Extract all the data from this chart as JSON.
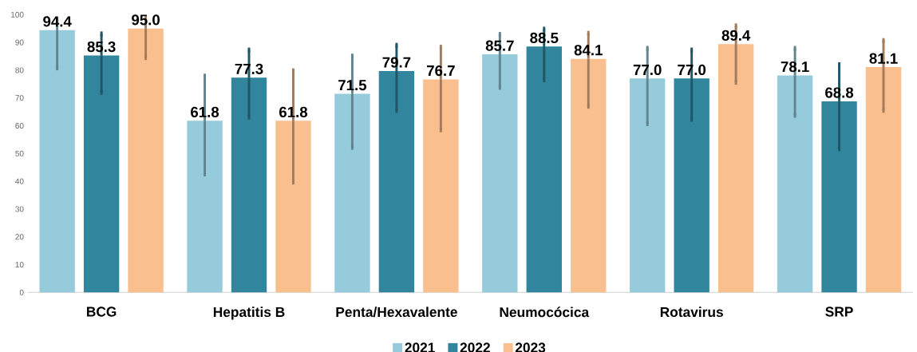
{
  "chart_data": {
    "type": "bar",
    "categories": [
      "BCG",
      "Hepatitis B",
      "Penta/Hexavalente",
      "Neumocócica",
      "Rotavirus",
      "SRP"
    ],
    "series": [
      {
        "name": "2021",
        "color": "#96cbdc",
        "values": [
          94.4,
          61.8,
          71.5,
          85.7,
          77.0,
          78.1
        ],
        "errors": [
          [
            80.8,
            98.4
          ],
          [
            42.6,
            77.9
          ],
          [
            52.2,
            85.1
          ],
          [
            73.8,
            92.9
          ],
          [
            60.7,
            87.9
          ],
          [
            63.7,
            87.9
          ]
        ],
        "value_labels": [
          "94.4",
          "61.8",
          "71.5",
          "85.7",
          "77.0",
          "78.1"
        ]
      },
      {
        "name": "2022",
        "color": "#31859c",
        "values": [
          85.3,
          77.3,
          79.7,
          88.5,
          77.0,
          68.8
        ],
        "errors": [
          [
            72.0,
            93.1
          ],
          [
            63.1,
            87.3
          ],
          [
            65.5,
            89.0
          ],
          [
            76.5,
            94.8
          ],
          [
            62.3,
            87.3
          ],
          [
            51.7,
            82.0
          ]
        ],
        "value_labels": [
          "85.3",
          "77.3",
          "79.7",
          "88.5",
          "77.0",
          "68.8"
        ]
      },
      {
        "name": "2023",
        "color": "#f9bf8f",
        "values": [
          95.0,
          61.8,
          76.7,
          84.1,
          89.4,
          81.1
        ],
        "errors": [
          [
            84.5,
            98.7
          ],
          [
            39.7,
            79.8
          ],
          [
            58.5,
            88.3
          ],
          [
            67.0,
            93.3
          ],
          [
            75.6,
            96.0
          ],
          [
            65.5,
            90.7
          ]
        ],
        "value_labels": [
          "95.0",
          "61.8",
          "76.7",
          "84.1",
          "89.4",
          "81.1"
        ]
      }
    ],
    "ylim": [
      0,
      100
    ],
    "yticks": [
      0,
      10,
      20,
      30,
      40,
      50,
      60,
      70,
      80,
      90,
      100
    ],
    "grid": false,
    "legend": "bottom"
  }
}
